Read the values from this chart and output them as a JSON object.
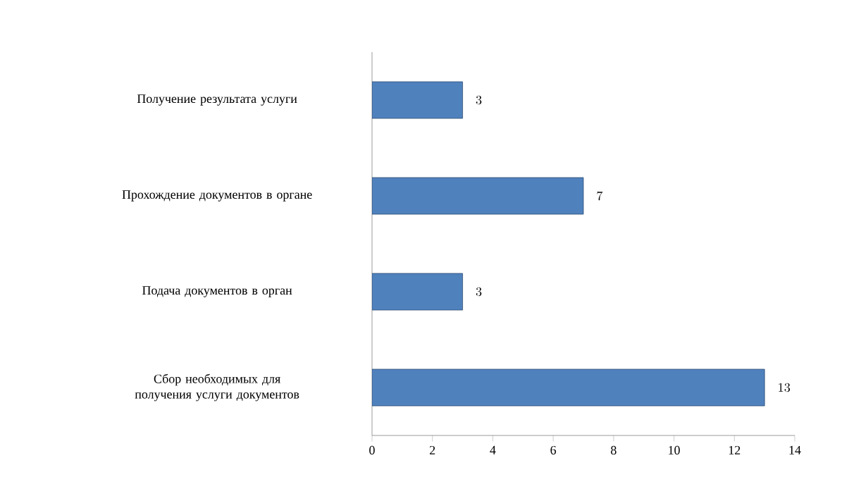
{
  "chart_data": {
    "type": "bar",
    "orientation": "horizontal",
    "categories": [
      "Получение результата услуги",
      "Прохождение документов в органе",
      "Подача документов в орган",
      "Сбор необходимых для получения услуги документов"
    ],
    "values": [
      3,
      7,
      3,
      13
    ],
    "color": "#4f81bd",
    "xlim": [
      0,
      14
    ],
    "xticks": [
      0,
      2,
      4,
      6,
      8,
      10,
      12,
      14
    ],
    "data_labels": true
  }
}
